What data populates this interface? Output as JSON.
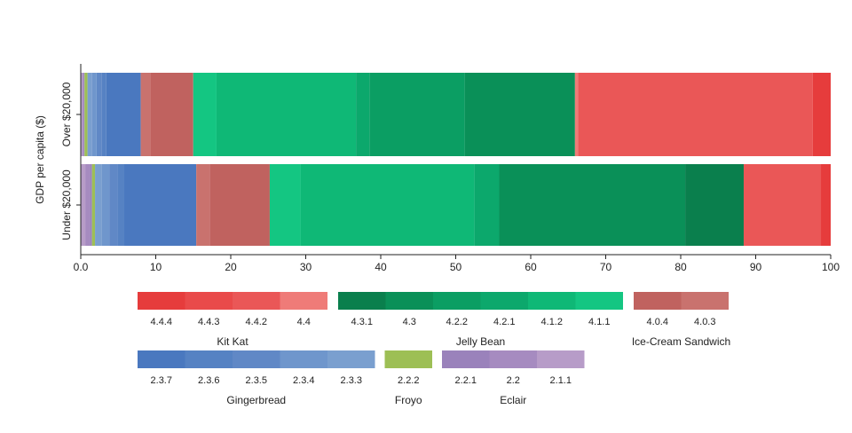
{
  "chart_data": {
    "type": "bar",
    "orientation": "horizontal",
    "stacked": true,
    "ylabel": "GDP per capita ($)",
    "xlim": [
      0,
      100
    ],
    "xticks": [
      "0.0",
      "10",
      "20",
      "30",
      "40",
      "50",
      "60",
      "70",
      "80",
      "90",
      "100"
    ],
    "categories": [
      "Over $20,000",
      "Under $20,000"
    ],
    "series": [
      {
        "name": "2.1.1",
        "group": "Eclair",
        "color": "#b79cc8",
        "values": [
          0.2,
          0.6
        ]
      },
      {
        "name": "2.2",
        "group": "Eclair",
        "color": "#a68bc0",
        "values": [
          0.2,
          0.6
        ]
      },
      {
        "name": "2.2.1",
        "group": "Eclair",
        "color": "#9a82bb",
        "values": [
          0.1,
          0.3
        ]
      },
      {
        "name": "2.2.2",
        "group": "Froyo",
        "color": "#9dbf55",
        "values": [
          0.4,
          0.4
        ]
      },
      {
        "name": "2.3.3",
        "group": "Gingerbread",
        "color": "#7a9fcf",
        "values": [
          0.6,
          0.9
        ]
      },
      {
        "name": "2.3.4",
        "group": "Gingerbread",
        "color": "#6f96cc",
        "values": [
          0.6,
          1.0
        ]
      },
      {
        "name": "2.3.5",
        "group": "Gingerbread",
        "color": "#6088c6",
        "values": [
          0.7,
          1.1
        ]
      },
      {
        "name": "2.3.6",
        "group": "Gingerbread",
        "color": "#5682c3",
        "values": [
          0.6,
          0.9
        ]
      },
      {
        "name": "2.3.7",
        "group": "Gingerbread",
        "color": "#4a78bf",
        "values": [
          4.6,
          9.6
        ]
      },
      {
        "name": "4.0.3",
        "group": "Ice-Cream Sandwich",
        "color": "#c9726e",
        "values": [
          1.3,
          1.8
        ]
      },
      {
        "name": "4.0.4",
        "group": "Ice-Cream Sandwich",
        "color": "#c0625f",
        "values": [
          5.7,
          8.0
        ]
      },
      {
        "name": "4.1.1",
        "group": "Jelly Bean",
        "color": "#14c682",
        "values": [
          3.1,
          4.1
        ]
      },
      {
        "name": "4.1.2",
        "group": "Jelly Bean",
        "color": "#0fb876",
        "values": [
          18.6,
          23.2
        ]
      },
      {
        "name": "4.2.1",
        "group": "Jelly Bean",
        "color": "#0ca86c",
        "values": [
          1.8,
          3.3
        ]
      },
      {
        "name": "4.2.2",
        "group": "Jelly Bean",
        "color": "#0b9e63",
        "values": [
          12.7,
          0.0
        ]
      },
      {
        "name": "4.3",
        "group": "Jelly Bean",
        "color": "#0a9058",
        "values": [
          14.7,
          24.8
        ]
      },
      {
        "name": "4.3.1",
        "group": "Jelly Bean",
        "color": "#0a7f4d",
        "values": [
          0.0,
          7.8
        ]
      },
      {
        "name": "4.4",
        "group": "Kit Kat",
        "color": "#ef7b78",
        "values": [
          0.4,
          0.0
        ]
      },
      {
        "name": "4.4.2",
        "group": "Kit Kat",
        "color": "#ea5757",
        "values": [
          31.3,
          10.3
        ]
      },
      {
        "name": "4.4.3",
        "group": "Kit Kat",
        "color": "#e94a4a",
        "values": [
          0.0,
          0.0
        ]
      },
      {
        "name": "4.4.4",
        "group": "Kit Kat",
        "color": "#e63c3c",
        "values": [
          2.4,
          1.3
        ]
      }
    ],
    "legend": {
      "placement": "bottom",
      "rows": [
        [
          {
            "group": "Kit Kat",
            "items": [
              "4.4.4",
              "4.4.3",
              "4.4.2",
              "4.4"
            ]
          },
          {
            "group": "Jelly Bean",
            "items": [
              "4.3.1",
              "4.3",
              "4.2.2",
              "4.2.1",
              "4.1.2",
              "4.1.1"
            ]
          },
          {
            "group": "Ice-Cream Sandwich",
            "items": [
              "4.0.4",
              "4.0.3"
            ]
          }
        ],
        [
          {
            "group": "Gingerbread",
            "items": [
              "2.3.7",
              "2.3.6",
              "2.3.5",
              "2.3.4",
              "2.3.3"
            ]
          },
          {
            "group": "Froyo",
            "items": [
              "2.2.2"
            ]
          },
          {
            "group": "Eclair",
            "items": [
              "2.2.1",
              "2.2",
              "2.1.1"
            ]
          }
        ]
      ]
    }
  }
}
